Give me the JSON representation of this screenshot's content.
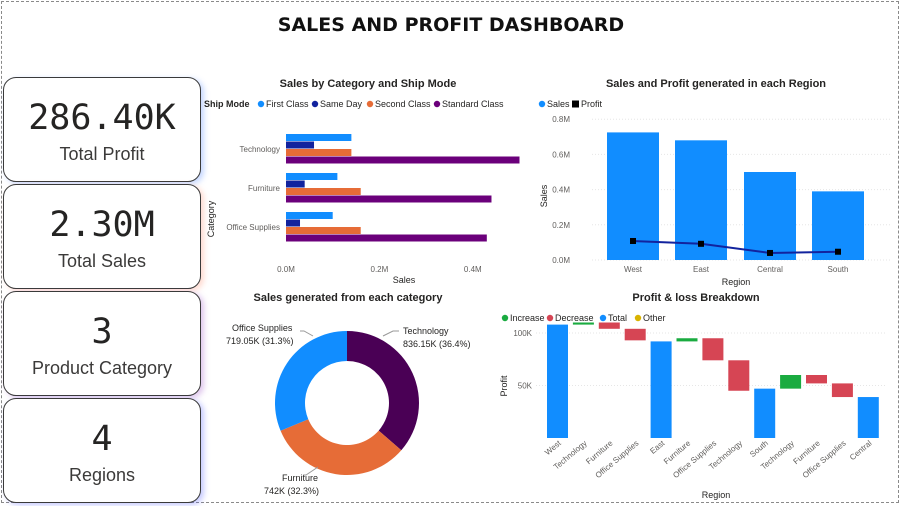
{
  "title": "SALES AND PROFIT DASHBOARD",
  "kpis": [
    {
      "value": "286.40K",
      "label": "Total Profit"
    },
    {
      "value": "2.30M",
      "label": "Total Sales"
    },
    {
      "value": "3",
      "label": "Product Category"
    },
    {
      "value": "4",
      "label": "Regions"
    }
  ],
  "colors": {
    "first_class": "#118DFF",
    "same_day": "#12239E",
    "second_class": "#E66C37",
    "standard_class": "#6B007B",
    "sales": "#118DFF",
    "profit": "#000000",
    "increase": "#1AAB40",
    "decrease": "#D64554",
    "total": "#118DFF",
    "other": "#D9B300",
    "profit_line": "#12239E",
    "card_glow": "#b9c9ff"
  },
  "chart_data": [
    {
      "id": "ship",
      "type": "bar",
      "orientation": "horizontal",
      "title": "Sales by Category and Ship Mode",
      "legend_title": "Ship Mode",
      "categories": [
        "Technology",
        "Furniture",
        "Office Supplies"
      ],
      "series": [
        {
          "name": "First Class",
          "values": [
            0.14,
            0.11,
            0.1
          ]
        },
        {
          "name": "Same Day",
          "values": [
            0.06,
            0.04,
            0.03
          ]
        },
        {
          "name": "Second Class",
          "values": [
            0.14,
            0.16,
            0.16
          ]
        },
        {
          "name": "Standard Class",
          "values": [
            0.5,
            0.44,
            0.43
          ]
        }
      ],
      "xlabel": "Sales",
      "ylabel": "Category",
      "xlim": [
        0,
        0.5
      ],
      "xticks": [
        {
          "v": 0,
          "label": "0.0M"
        },
        {
          "v": 0.2,
          "label": "0.2M"
        },
        {
          "v": 0.4,
          "label": "0.4M"
        }
      ],
      "legend_position": "top"
    },
    {
      "id": "region",
      "type": "bar",
      "title": "Sales and Profit generated in each Region",
      "categories": [
        "West",
        "East",
        "Central",
        "South"
      ],
      "series": [
        {
          "name": "Sales",
          "type": "bar",
          "values": [
            0.725,
            0.68,
            0.5,
            0.39
          ]
        },
        {
          "name": "Profit",
          "type": "line",
          "values": [
            0.108,
            0.092,
            0.04,
            0.047
          ]
        }
      ],
      "xlabel": "Region",
      "ylabel": "Sales",
      "ylim": [
        0,
        0.8
      ],
      "yticks": [
        {
          "v": 0,
          "label": "0.0M"
        },
        {
          "v": 0.2,
          "label": "0.2M"
        },
        {
          "v": 0.4,
          "label": "0.4M"
        },
        {
          "v": 0.6,
          "label": "0.6M"
        },
        {
          "v": 0.8,
          "label": "0.8M"
        }
      ],
      "grid": true,
      "legend_position": "top-left"
    },
    {
      "id": "donut",
      "type": "pie",
      "title": "Sales generated from each category",
      "slices": [
        {
          "name": "Technology",
          "value": 836.15,
          "label": "836.15K (36.4%)",
          "color": "#4A0055"
        },
        {
          "name": "Furniture",
          "value": 742,
          "label": "742K (32.3%)",
          "color": "#E66C37"
        },
        {
          "name": "Office Supplies",
          "value": 719.05,
          "label": "719.05K (31.3%)",
          "color": "#118DFF"
        }
      ]
    },
    {
      "id": "waterfall",
      "type": "bar",
      "subtype": "waterfall",
      "title": "Profit & loss Breakdown",
      "legend": [
        "Increase",
        "Decrease",
        "Total",
        "Other"
      ],
      "categories": [
        "West",
        "Technology",
        "Furniture",
        "Office Supplies",
        "East",
        "Furniture",
        "Office Supplies",
        "Technology",
        "South",
        "Technology",
        "Furniture",
        "Office Supplies",
        "Central"
      ],
      "steps": [
        {
          "kind": "total",
          "start": 0,
          "end": 108
        },
        {
          "kind": "increase",
          "start": 108,
          "end": 110
        },
        {
          "kind": "decrease",
          "start": 110,
          "end": 104
        },
        {
          "kind": "decrease",
          "start": 104,
          "end": 93
        },
        {
          "kind": "total",
          "start": 0,
          "end": 92
        },
        {
          "kind": "increase",
          "start": 92,
          "end": 95
        },
        {
          "kind": "decrease",
          "start": 95,
          "end": 74
        },
        {
          "kind": "decrease",
          "start": 74,
          "end": 45
        },
        {
          "kind": "total",
          "start": 0,
          "end": 47
        },
        {
          "kind": "increase",
          "start": 47,
          "end": 60
        },
        {
          "kind": "decrease",
          "start": 60,
          "end": 52
        },
        {
          "kind": "decrease",
          "start": 52,
          "end": 39
        },
        {
          "kind": "total",
          "start": 0,
          "end": 39
        }
      ],
      "xlabel": "Region",
      "ylabel": "Profit",
      "ylim": [
        0,
        118
      ],
      "yticks": [
        {
          "v": 50,
          "label": "50K"
        },
        {
          "v": 100,
          "label": "100K"
        }
      ],
      "grid": true,
      "legend_position": "top-left"
    }
  ]
}
